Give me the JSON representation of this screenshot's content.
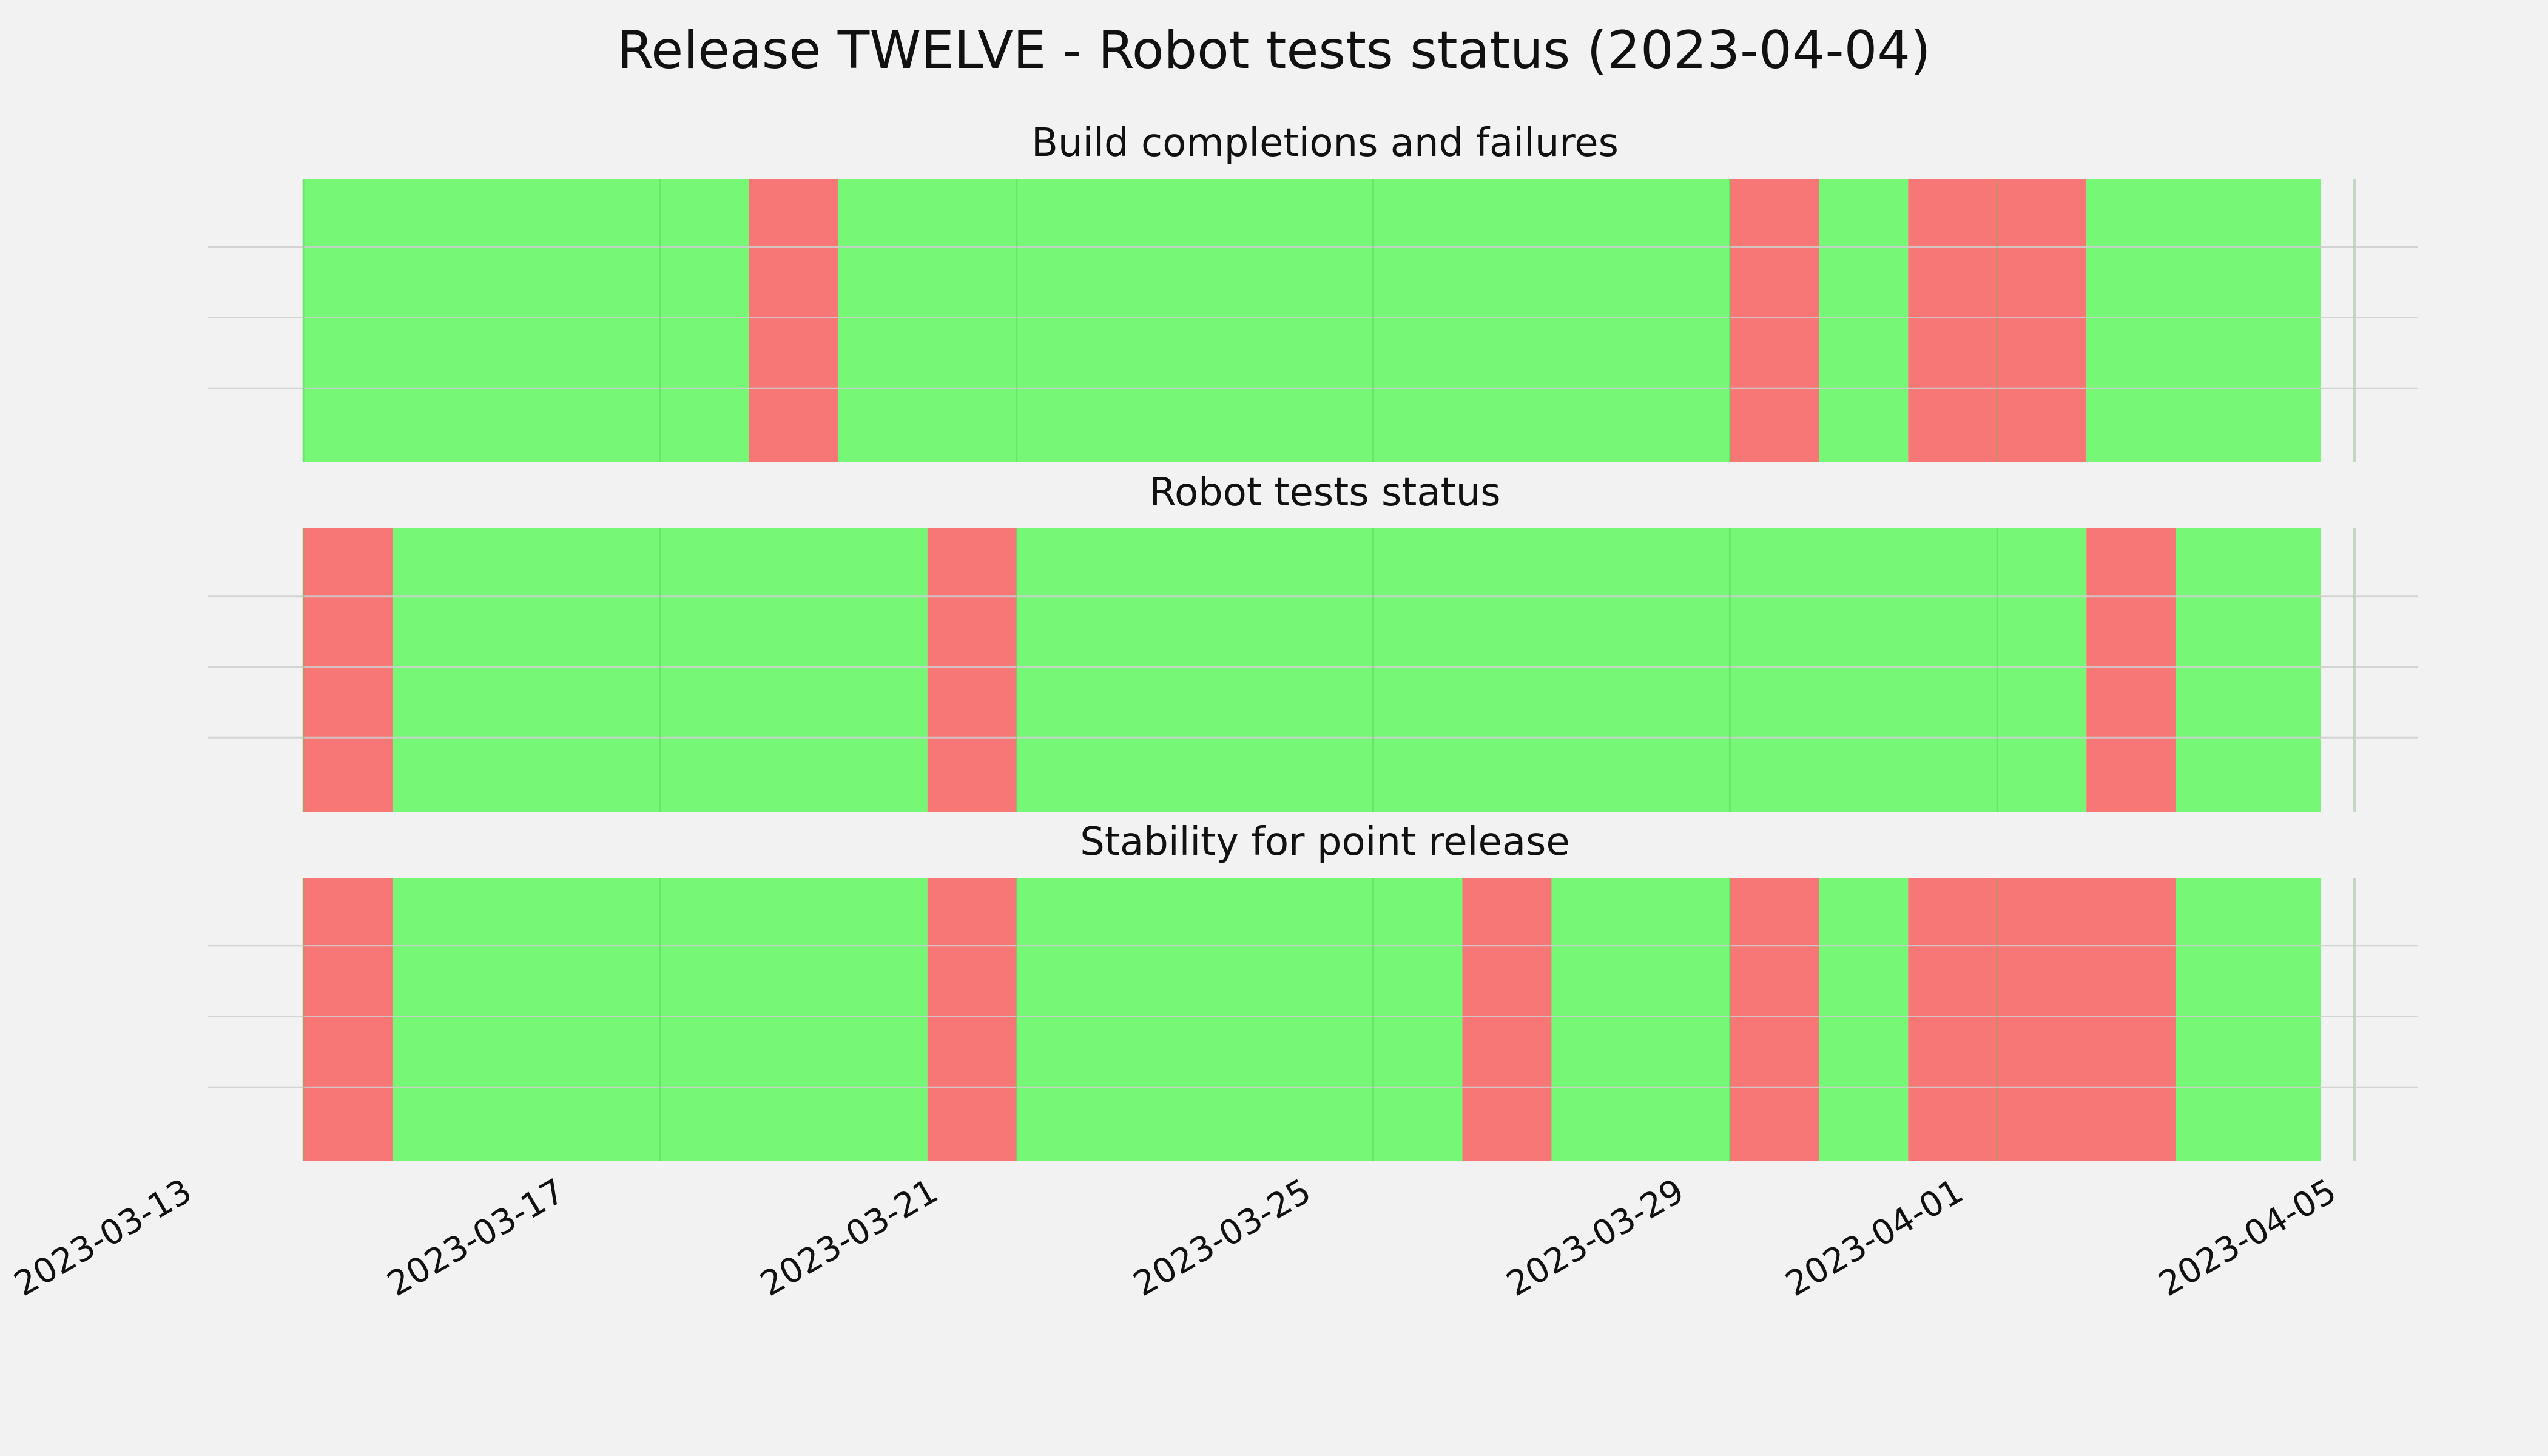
{
  "chart_data": {
    "type": "timeline",
    "title": "Release TWELVE - Robot tests status (2023-04-04)",
    "x_ticks": [
      "2023-03-13",
      "2023-03-17",
      "2023-03-21",
      "2023-03-25",
      "2023-03-29",
      "2023-04-01",
      "2023-04-05"
    ],
    "x_range": [
      "2023-03-12",
      "2023-04-05"
    ],
    "colors": {
      "pass": "#76f776",
      "fail": "#f77676",
      "background": "#f2f2f2",
      "grid": "#cfcfcf"
    },
    "grid": true,
    "panels": [
      {
        "title": "Build completions and failures",
        "segments": [
          {
            "start": "2023-03-13",
            "end": "2023-03-18",
            "status": "pass"
          },
          {
            "start": "2023-03-18",
            "end": "2023-03-19",
            "status": "fail"
          },
          {
            "start": "2023-03-19",
            "end": "2023-03-29",
            "status": "pass"
          },
          {
            "start": "2023-03-29",
            "end": "2023-03-30",
            "status": "fail"
          },
          {
            "start": "2023-03-30",
            "end": "2023-03-31",
            "status": "pass"
          },
          {
            "start": "2023-03-31",
            "end": "2023-04-02",
            "status": "fail"
          },
          {
            "start": "2023-04-02",
            "end": "2023-04-04T15:00",
            "status": "pass"
          }
        ]
      },
      {
        "title": "Robot tests status",
        "segments": [
          {
            "start": "2023-03-13",
            "end": "2023-03-14",
            "status": "fail"
          },
          {
            "start": "2023-03-14",
            "end": "2023-03-20",
            "status": "pass"
          },
          {
            "start": "2023-03-20",
            "end": "2023-03-21",
            "status": "fail"
          },
          {
            "start": "2023-03-21",
            "end": "2023-04-02",
            "status": "pass"
          },
          {
            "start": "2023-04-02",
            "end": "2023-04-03",
            "status": "fail"
          },
          {
            "start": "2023-04-03",
            "end": "2023-04-04T15:00",
            "status": "pass"
          }
        ]
      },
      {
        "title": "Stability for point release",
        "segments": [
          {
            "start": "2023-03-13",
            "end": "2023-03-14",
            "status": "fail"
          },
          {
            "start": "2023-03-14",
            "end": "2023-03-20",
            "status": "pass"
          },
          {
            "start": "2023-03-20",
            "end": "2023-03-21",
            "status": "fail"
          },
          {
            "start": "2023-03-21",
            "end": "2023-03-26",
            "status": "pass"
          },
          {
            "start": "2023-03-26",
            "end": "2023-03-27",
            "status": "fail"
          },
          {
            "start": "2023-03-27",
            "end": "2023-03-29",
            "status": "pass"
          },
          {
            "start": "2023-03-29",
            "end": "2023-03-30",
            "status": "fail"
          },
          {
            "start": "2023-03-30",
            "end": "2023-03-31",
            "status": "pass"
          },
          {
            "start": "2023-03-31",
            "end": "2023-04-03",
            "status": "fail"
          },
          {
            "start": "2023-04-03",
            "end": "2023-04-04T15:00",
            "status": "pass"
          }
        ]
      }
    ]
  }
}
